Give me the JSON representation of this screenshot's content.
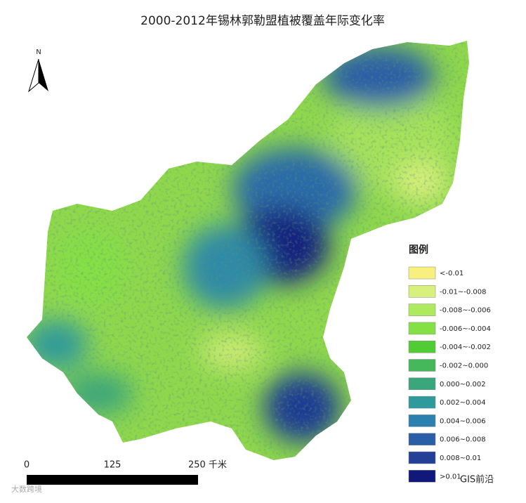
{
  "title": "2000-2012年锡林郭勒盟植被覆盖年际变化率",
  "north_arrow": {
    "label": "N"
  },
  "legend": {
    "title": "图例",
    "items": [
      {
        "label": "<-0.01",
        "color": "#f7f07e"
      },
      {
        "label": "-0.01~-0.008",
        "color": "#d8f07c"
      },
      {
        "label": "-0.008~-0.006",
        "color": "#aeea5e"
      },
      {
        "label": "-0.006~-0.004",
        "color": "#84e044"
      },
      {
        "label": "-0.004~-0.002",
        "color": "#52cc34"
      },
      {
        "label": "-0.002~0.000",
        "color": "#44b85a"
      },
      {
        "label": "0.000~0.002",
        "color": "#3aa67c"
      },
      {
        "label": "0.002~0.004",
        "color": "#2e9a9c"
      },
      {
        "label": "0.004~0.006",
        "color": "#2a80ae"
      },
      {
        "label": "0.006~0.008",
        "color": "#2a5ea6"
      },
      {
        "label": "0.008~0.01",
        "color": "#233f98"
      },
      {
        "label": ">0.01",
        "color": "#10187a"
      }
    ]
  },
  "scale_bar": {
    "labels": [
      "0",
      "125",
      "250 千米"
    ]
  },
  "watermarks": [
    "大数跨境",
    "GIS前沿"
  ]
}
